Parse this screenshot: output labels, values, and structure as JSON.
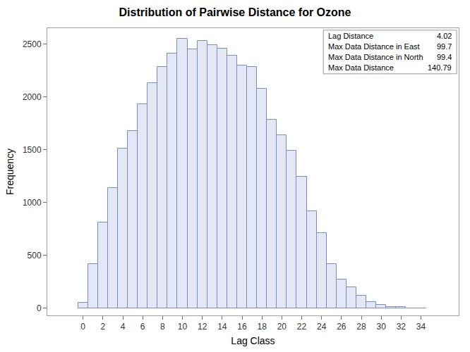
{
  "chart_data": {
    "type": "histogram",
    "title": "Distribution of Pairwise Distance for Ozone",
    "x_label": "Lag Class",
    "y_label": "Frequency",
    "bins": [
      -0.5,
      0.5,
      1.5,
      2.5,
      3.5,
      4.5,
      5.5,
      6.5,
      7.5,
      8.5,
      9.5,
      10.5,
      11.5,
      12.5,
      13.5,
      14.5,
      15.5,
      16.5,
      17.5,
      18.5,
      19.5,
      20.5,
      21.5,
      22.5,
      23.5,
      24.5,
      25.5,
      26.5,
      27.5,
      28.5,
      29.5,
      30.5,
      31.5,
      32.5,
      33.5,
      34.5
    ],
    "values": [
      50,
      420,
      810,
      1140,
      1515,
      1680,
      1930,
      2130,
      2285,
      2410,
      2550,
      2450,
      2535,
      2490,
      2460,
      2390,
      2300,
      2285,
      2080,
      1785,
      1640,
      1495,
      1245,
      920,
      710,
      420,
      275,
      200,
      120,
      60,
      35,
      15,
      10,
      3,
      2
    ],
    "color": "#e4e8f4",
    "xlim": [
      -3.6,
      37.8
    ],
    "xticks": [
      0,
      2,
      4,
      6,
      8,
      10,
      12,
      14,
      16,
      18,
      20,
      22,
      24,
      26,
      28,
      30,
      32,
      34
    ],
    "ylim": [
      -67,
      2653
    ],
    "yticks": [
      0,
      500,
      1000,
      1500,
      2000,
      2500
    ],
    "grid": false,
    "inset": [
      {
        "label": "Lag Distance",
        "value": 4.02
      },
      {
        "label": "Max Data Distance in East",
        "value": 99.7
      },
      {
        "label": "Max Data Distance in North",
        "value": 99.4
      },
      {
        "label": "Max Data Distance",
        "value": 140.79
      }
    ]
  }
}
